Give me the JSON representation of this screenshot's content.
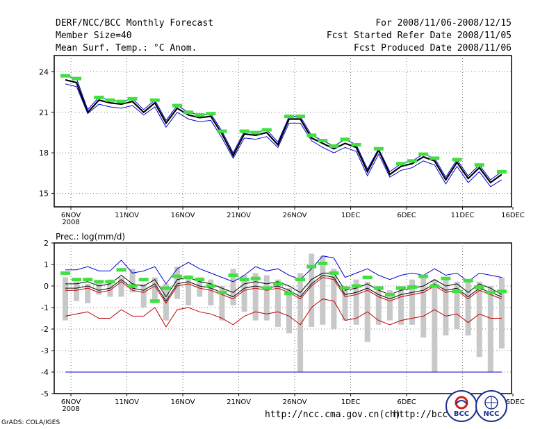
{
  "header": {
    "title": "DERF/NCC/BCC Monthly Forecast",
    "member_size": "Member Size=40",
    "variable": "Mean Surf. Temp.: °C Anom.",
    "period": "For 2008/11/06-2008/12/15",
    "refer_date": "Fcst Started Refer Date 2008/11/05",
    "produced_date": "Fcst Produced Date 2008/11/06"
  },
  "footer": {
    "url1": "http://ncc.cma.gov.cn(ch)",
    "url2": "http://bcc.c",
    "grads": "GrADS: COLA/IGES",
    "logo1": "BCC",
    "logo2": "NCC"
  },
  "colors": {
    "blue": "#0000d0",
    "red": "#c00000",
    "green": "#40e040",
    "gray": "#c8c8c8",
    "black": "#000000",
    "grid": "#555555"
  },
  "chart_data": [
    {
      "type": "line",
      "name": "temperature",
      "title": "Mean Surf. Temp.: °C Anom.",
      "ylim": [
        14,
        25.2
      ],
      "yticks": [
        15,
        18,
        21,
        24
      ],
      "xlim": [
        0,
        40
      ],
      "xticks": [
        {
          "x": 0.5,
          "label": "6NOV",
          "sub": "2008"
        },
        {
          "x": 5.5,
          "label": "11NOV"
        },
        {
          "x": 10.5,
          "label": "16NOV"
        },
        {
          "x": 15.5,
          "label": "21NOV"
        },
        {
          "x": 20.5,
          "label": "26NOV"
        },
        {
          "x": 25.5,
          "label": "1DEC"
        },
        {
          "x": 30.5,
          "label": "6DEC"
        },
        {
          "x": 35.5,
          "label": "11DEC"
        },
        {
          "x": 40.0,
          "label": "16DEC"
        }
      ],
      "x": [
        0,
        1,
        2,
        3,
        4,
        5,
        6,
        7,
        8,
        9,
        10,
        11,
        12,
        13,
        14,
        15,
        16,
        17,
        18,
        19,
        20,
        21,
        22,
        23,
        24,
        25,
        26,
        27,
        28,
        29,
        30,
        31,
        32,
        33,
        34,
        35,
        36,
        37,
        38,
        39
      ],
      "series": [
        {
          "name": "max",
          "color": "blue",
          "values": [
            23.7,
            23.5,
            21.2,
            22.1,
            21.9,
            21.8,
            22.0,
            21.2,
            21.9,
            20.4,
            21.5,
            21.0,
            20.8,
            20.9,
            19.6,
            18.0,
            19.6,
            19.5,
            19.7,
            18.8,
            20.7,
            20.7,
            19.3,
            18.9,
            18.5,
            19.0,
            18.6,
            16.8,
            18.3,
            16.6,
            17.2,
            17.4,
            17.9,
            17.6,
            16.2,
            17.5,
            16.3,
            17.1,
            16.0,
            16.6
          ]
        },
        {
          "name": "mean",
          "color": "black",
          "values": [
            23.4,
            23.2,
            21.0,
            21.9,
            21.7,
            21.6,
            21.8,
            21.0,
            21.7,
            20.2,
            21.3,
            20.8,
            20.6,
            20.7,
            19.4,
            17.8,
            19.4,
            19.3,
            19.5,
            18.6,
            20.5,
            20.5,
            19.1,
            18.7,
            18.3,
            18.7,
            18.4,
            16.6,
            18.2,
            16.4,
            17.0,
            17.2,
            17.7,
            17.4,
            16.0,
            17.3,
            16.1,
            16.9,
            15.8,
            16.4
          ]
        },
        {
          "name": "min",
          "color": "blue",
          "values": [
            23.1,
            22.9,
            20.9,
            21.6,
            21.4,
            21.3,
            21.5,
            20.8,
            21.4,
            19.9,
            21.0,
            20.5,
            20.3,
            20.4,
            19.1,
            17.6,
            19.1,
            19.0,
            19.2,
            18.4,
            20.2,
            20.2,
            18.9,
            18.4,
            18.0,
            18.4,
            18.1,
            16.3,
            17.9,
            16.2,
            16.7,
            16.9,
            17.4,
            17.1,
            15.7,
            17.0,
            15.8,
            16.6,
            15.5,
            16.0
          ]
        },
        {
          "name": "observed",
          "color": "green",
          "values": [
            23.7,
            23.5,
            null,
            22.1,
            21.9,
            21.8,
            22.0,
            null,
            21.9,
            null,
            21.5,
            21.0,
            20.8,
            20.9,
            19.6,
            null,
            19.6,
            19.5,
            19.7,
            null,
            20.7,
            20.7,
            19.3,
            18.9,
            18.5,
            19.0,
            18.6,
            null,
            18.3,
            null,
            17.2,
            17.4,
            17.9,
            17.6,
            null,
            17.5,
            null,
            17.1,
            null,
            16.6
          ]
        }
      ]
    },
    {
      "type": "line",
      "name": "precipitation",
      "title": "Prec.: log(mm/d)",
      "ylim": [
        -5,
        2
      ],
      "yticks": [
        -5,
        -4,
        -3,
        -2,
        -1,
        0,
        1,
        2
      ],
      "xlim": [
        0,
        40
      ],
      "xticks": [
        {
          "x": 0.5,
          "label": "6NOV",
          "sub": "2008"
        },
        {
          "x": 5.5,
          "label": "11NOV"
        },
        {
          "x": 10.5,
          "label": "16NOV"
        },
        {
          "x": 15.5,
          "label": "21NOV"
        },
        {
          "x": 20.5,
          "label": "26NOV"
        },
        {
          "x": 25.5,
          "label": "1DEC"
        },
        {
          "x": 30.5,
          "label": "6DEC"
        },
        {
          "x": 35.5,
          "label": "11DEC"
        },
        {
          "x": 40.0,
          "label": "16DEC"
        }
      ],
      "x": [
        0,
        1,
        2,
        3,
        4,
        5,
        6,
        7,
        8,
        9,
        10,
        11,
        12,
        13,
        14,
        15,
        16,
        17,
        18,
        19,
        20,
        21,
        22,
        23,
        24,
        25,
        26,
        27,
        28,
        29,
        30,
        31,
        32,
        33,
        34,
        35,
        36,
        37,
        38,
        39
      ],
      "bars": {
        "name": "member spread",
        "color": "gray",
        "low": [
          -1.6,
          -0.7,
          -0.8,
          -0.4,
          -0.5,
          -0.5,
          -0.3,
          -1.0,
          -0.8,
          -1.6,
          -0.6,
          -0.9,
          -0.5,
          -0.9,
          -1.6,
          -0.9,
          -1.2,
          -1.6,
          -1.6,
          -1.9,
          -2.2,
          -4.0,
          -1.9,
          -1.8,
          -2.0,
          -1.6,
          -1.8,
          -2.6,
          -1.8,
          -1.6,
          -1.8,
          -1.8,
          -2.4,
          -4.0,
          -2.3,
          -2.0,
          -2.3,
          -3.3,
          -4.0,
          -2.9
        ],
        "high": [
          0.4,
          0.2,
          0.1,
          0.2,
          0.3,
          0.4,
          0.8,
          0.1,
          0.4,
          0.1,
          0.9,
          0.5,
          0.4,
          0.3,
          0.0,
          0.8,
          0.5,
          0.6,
          0.5,
          0.3,
          -0.1,
          0.6,
          1.5,
          1.4,
          0.8,
          0.0,
          0.3,
          0.2,
          0.0,
          -0.2,
          0.0,
          0.3,
          0.5,
          0.3,
          0.4,
          0.2,
          0.3,
          0.2,
          0.0,
          0.4
        ]
      },
      "series": [
        {
          "name": "max",
          "color": "blue",
          "values": [
            0.75,
            0.75,
            0.9,
            0.7,
            0.7,
            1.2,
            0.6,
            0.7,
            0.9,
            0.1,
            0.8,
            1.1,
            0.8,
            0.6,
            0.4,
            0.2,
            0.5,
            0.9,
            0.7,
            0.8,
            0.5,
            0.3,
            0.8,
            1.4,
            1.3,
            0.4,
            0.6,
            0.8,
            0.5,
            0.3,
            0.5,
            0.6,
            0.5,
            0.8,
            0.5,
            0.6,
            0.2,
            0.6,
            0.5,
            0.4
          ]
        },
        {
          "name": "upper",
          "color": "black",
          "values": [
            0.1,
            0.1,
            0.2,
            0.0,
            0.1,
            0.5,
            0.1,
            0.0,
            0.3,
            -0.5,
            0.3,
            0.4,
            0.2,
            0.1,
            -0.1,
            -0.3,
            0.1,
            0.2,
            0.1,
            0.2,
            0.0,
            -0.3,
            0.3,
            0.6,
            0.6,
            -0.2,
            -0.1,
            0.1,
            -0.2,
            -0.4,
            -0.2,
            -0.1,
            0.0,
            0.3,
            0.0,
            0.1,
            -0.3,
            0.1,
            -0.1,
            -0.4
          ]
        },
        {
          "name": "mean",
          "color": "red",
          "values": [
            -0.2,
            -0.2,
            -0.1,
            -0.3,
            -0.2,
            0.2,
            -0.2,
            -0.3,
            0.0,
            -0.8,
            0.0,
            0.1,
            -0.1,
            -0.2,
            -0.4,
            -0.6,
            -0.2,
            -0.1,
            -0.2,
            -0.1,
            -0.3,
            -0.6,
            0.0,
            0.4,
            0.3,
            -0.5,
            -0.4,
            -0.2,
            -0.5,
            -0.7,
            -0.5,
            -0.4,
            -0.3,
            0.0,
            -0.3,
            -0.2,
            -0.6,
            -0.2,
            -0.4,
            -0.6
          ]
        },
        {
          "name": "lower",
          "color": "black",
          "values": [
            -0.1,
            -0.1,
            0.0,
            -0.2,
            -0.1,
            0.3,
            -0.1,
            -0.2,
            0.1,
            -0.7,
            0.1,
            0.2,
            0.0,
            -0.1,
            -0.3,
            -0.5,
            -0.1,
            0.0,
            -0.1,
            0.0,
            -0.2,
            -0.5,
            0.1,
            0.5,
            0.4,
            -0.4,
            -0.3,
            -0.1,
            -0.4,
            -0.6,
            -0.4,
            -0.3,
            -0.2,
            0.1,
            -0.2,
            -0.1,
            -0.5,
            -0.1,
            -0.3,
            -0.5
          ]
        },
        {
          "name": "min",
          "color": "red",
          "values": [
            -1.4,
            -1.3,
            -1.2,
            -1.5,
            -1.5,
            -1.1,
            -1.4,
            -1.4,
            -1.0,
            -1.9,
            -1.1,
            -1.0,
            -1.2,
            -1.3,
            -1.5,
            -1.8,
            -1.4,
            -1.2,
            -1.3,
            -1.2,
            -1.4,
            -1.8,
            -1.0,
            -0.6,
            -0.7,
            -1.6,
            -1.5,
            -1.2,
            -1.6,
            -1.8,
            -1.6,
            -1.5,
            -1.4,
            -1.1,
            -1.4,
            -1.3,
            -1.7,
            -1.3,
            -1.5,
            -1.5
          ]
        },
        {
          "name": "climatology",
          "color": "blue",
          "constant": -4.0
        },
        {
          "name": "observed",
          "color": "green",
          "values": [
            0.6,
            0.3,
            0.3,
            0.2,
            0.2,
            0.75,
            0.0,
            0.3,
            -0.7,
            -0.1,
            0.45,
            0.4,
            0.3,
            0.0,
            -0.3,
            0.5,
            0.3,
            0.35,
            -0.1,
            0.1,
            -0.35,
            0.3,
            0.9,
            1.05,
            0.6,
            -0.1,
            0.0,
            0.4,
            -0.1,
            -0.4,
            -0.1,
            -0.05,
            0.45,
            0.0,
            0.35,
            -0.25,
            0.25,
            -0.05,
            -0.3,
            -0.25
          ]
        }
      ]
    }
  ]
}
